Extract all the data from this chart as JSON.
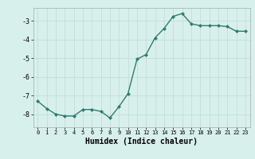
{
  "x": [
    0,
    1,
    2,
    3,
    4,
    5,
    6,
    7,
    8,
    9,
    10,
    11,
    12,
    13,
    14,
    15,
    16,
    17,
    18,
    19,
    20,
    21,
    22,
    23
  ],
  "y": [
    -7.3,
    -7.7,
    -8.0,
    -8.1,
    -8.1,
    -7.75,
    -7.75,
    -7.85,
    -8.2,
    -7.6,
    -6.9,
    -5.05,
    -4.8,
    -3.9,
    -3.4,
    -2.75,
    -2.6,
    -3.15,
    -3.25,
    -3.25,
    -3.25,
    -3.3,
    -3.55,
    -3.55
  ],
  "line_color": "#2e7d6e",
  "marker": "D",
  "marker_size": 2,
  "background_color": "#d8f0ec",
  "grid_color": "#c4ddd8",
  "xlabel": "Humidex (Indice chaleur)",
  "xlim": [
    -0.5,
    23.5
  ],
  "ylim": [
    -8.7,
    -2.3
  ],
  "yticks": [
    -8,
    -7,
    -6,
    -5,
    -4,
    -3
  ],
  "xticks": [
    0,
    1,
    2,
    3,
    4,
    5,
    6,
    7,
    8,
    9,
    10,
    11,
    12,
    13,
    14,
    15,
    16,
    17,
    18,
    19,
    20,
    21,
    22,
    23
  ],
  "line_width": 1.0
}
